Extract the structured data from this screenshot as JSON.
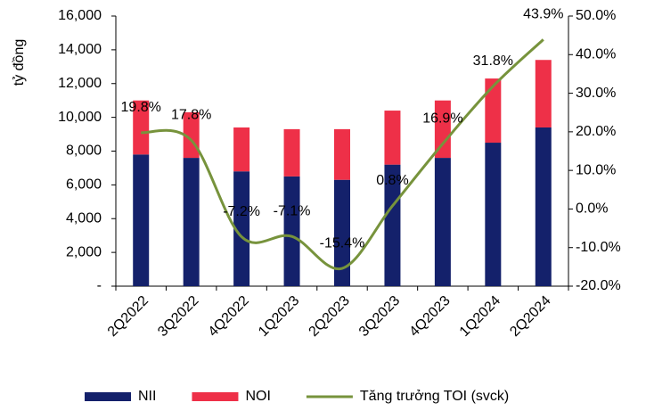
{
  "chart_data": {
    "type": "bar-line",
    "y_label": "tỷ đồng",
    "categories": [
      "2Q2022",
      "3Q2022",
      "4Q2022",
      "1Q2023",
      "2Q2023",
      "3Q2023",
      "4Q2023",
      "1Q2024",
      "2Q2024"
    ],
    "series": [
      {
        "name": "NII",
        "color": "#14216b",
        "values": [
          7800,
          7600,
          6800,
          6500,
          6300,
          7200,
          7600,
          8500,
          9400
        ]
      },
      {
        "name": "NOI",
        "color": "#ee3048",
        "values": [
          3200,
          2700,
          2600,
          2800,
          3000,
          3200,
          3400,
          3800,
          4000
        ]
      },
      {
        "name": "Tăng trưởng TOI (svck)",
        "color": "#77933c",
        "axis": "y2",
        "type": "line",
        "values": [
          19.8,
          17.8,
          -7.2,
          -7.1,
          -15.4,
          0.8,
          16.9,
          31.8,
          43.9
        ],
        "value_labels": [
          "19.8%",
          "17.8%",
          "-7.2%",
          "-7.1%",
          "-15.4%",
          "0.8%",
          "16.9%",
          "31.8%",
          "43.9%"
        ]
      }
    ],
    "ylim": [
      0,
      16000
    ],
    "yticks": [
      {
        "value": 0,
        "label": "-"
      },
      {
        "value": 2000,
        "label": "2,000"
      },
      {
        "value": 4000,
        "label": "4,000"
      },
      {
        "value": 6000,
        "label": "6,000"
      },
      {
        "value": 8000,
        "label": "8,000"
      },
      {
        "value": 10000,
        "label": "10,000"
      },
      {
        "value": 12000,
        "label": "12,000"
      },
      {
        "value": 14000,
        "label": "14,000"
      },
      {
        "value": 16000,
        "label": "16,000"
      }
    ],
    "y2lim": [
      -20,
      50
    ],
    "y2ticks": [
      {
        "value": -20,
        "label": "-20.0%"
      },
      {
        "value": -10,
        "label": "-10.0%"
      },
      {
        "value": 0,
        "label": "0.0%"
      },
      {
        "value": 10,
        "label": "10.0%"
      },
      {
        "value": 20,
        "label": "20.0%"
      },
      {
        "value": 30,
        "label": "30.0%"
      },
      {
        "value": 40,
        "label": "40.0%"
      },
      {
        "value": 50,
        "label": "50.0%"
      }
    ],
    "legend": "bottom"
  }
}
